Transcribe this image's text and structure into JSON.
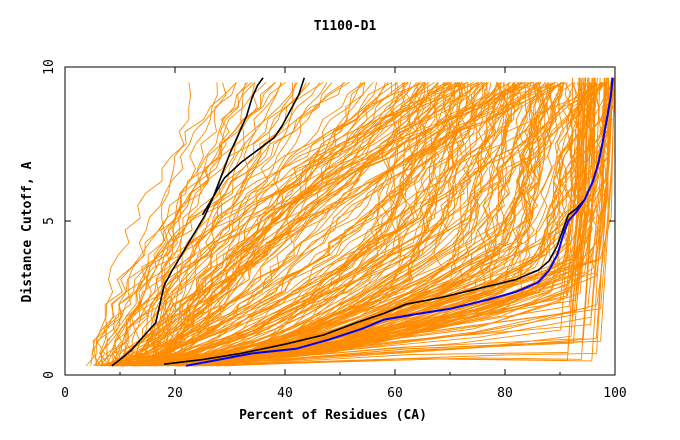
{
  "chart_data": {
    "type": "line",
    "title": "T1100-D1",
    "xlabel": "Percent of Residues (CA)",
    "ylabel": "Distance Cutoff, A",
    "xlim": [
      0,
      100
    ],
    "ylim": [
      0,
      10
    ],
    "xticks": [
      "0",
      "20",
      "40",
      "60",
      "80",
      "100"
    ],
    "yticks": [
      "0",
      "5",
      "10"
    ],
    "grid": false,
    "colors": {
      "background_models": "#ff8c00",
      "highlight_black": "#000000",
      "highlight_blue": "#0000ff"
    },
    "highlighted_series": [
      {
        "color": "black",
        "points": [
          [
            8.5,
            0.3
          ],
          [
            10,
            0.5
          ],
          [
            12,
            0.8
          ],
          [
            14,
            1.2
          ],
          [
            16.5,
            1.7
          ],
          [
            17.5,
            2.5
          ],
          [
            18,
            2.9
          ],
          [
            19.5,
            3.4
          ],
          [
            21.5,
            4
          ],
          [
            23.5,
            4.6
          ],
          [
            25.5,
            5.2
          ],
          [
            27,
            5.8
          ],
          [
            28.5,
            6.5
          ],
          [
            30,
            7.2
          ],
          [
            31.5,
            7.8
          ],
          [
            33,
            8.4
          ],
          [
            34,
            9
          ],
          [
            35,
            9.4
          ],
          [
            36,
            9.65
          ]
        ]
      },
      {
        "color": "black",
        "points": [
          [
            25,
            5.2
          ],
          [
            27,
            5.8
          ],
          [
            29,
            6.4
          ],
          [
            32,
            6.9
          ],
          [
            35,
            7.3
          ],
          [
            38,
            7.7
          ],
          [
            39.5,
            8.1
          ],
          [
            41,
            8.6
          ],
          [
            42.5,
            9.1
          ],
          [
            43.5,
            9.65
          ]
        ]
      },
      {
        "color": "black",
        "points": [
          [
            18,
            0.35
          ],
          [
            25,
            0.5
          ],
          [
            32,
            0.7
          ],
          [
            40,
            1
          ],
          [
            47,
            1.3
          ],
          [
            53,
            1.7
          ],
          [
            58,
            2
          ],
          [
            62,
            2.3
          ],
          [
            68,
            2.5
          ],
          [
            75,
            2.8
          ],
          [
            82,
            3.1
          ],
          [
            86,
            3.4
          ],
          [
            88,
            3.7
          ],
          [
            89.5,
            4.2
          ],
          [
            90.5,
            4.7
          ],
          [
            91.5,
            5.2
          ],
          [
            93,
            5.4
          ],
          [
            94.5,
            5.7
          ],
          [
            96,
            6.3
          ],
          [
            97,
            6.9
          ],
          [
            97.8,
            7.6
          ],
          [
            98.5,
            8.3
          ],
          [
            99.2,
            9
          ],
          [
            99.5,
            9.65
          ]
        ]
      },
      {
        "color": "blue",
        "points": [
          [
            22,
            0.3
          ],
          [
            28,
            0.5
          ],
          [
            34,
            0.7
          ],
          [
            42,
            0.85
          ],
          [
            48,
            1.15
          ],
          [
            54,
            1.5
          ],
          [
            58,
            1.8
          ],
          [
            63,
            1.95
          ],
          [
            70,
            2.15
          ],
          [
            77,
            2.45
          ],
          [
            82,
            2.7
          ],
          [
            86,
            3
          ],
          [
            88,
            3.4
          ],
          [
            89.5,
            3.9
          ],
          [
            90.5,
            4.5
          ],
          [
            91.5,
            5
          ],
          [
            93,
            5.3
          ],
          [
            94.5,
            5.7
          ],
          [
            96,
            6.3
          ],
          [
            97,
            6.9
          ],
          [
            97.8,
            7.6
          ],
          [
            98.5,
            8.3
          ],
          [
            99.2,
            9
          ],
          [
            99.6,
            9.65
          ]
        ]
      }
    ]
  }
}
